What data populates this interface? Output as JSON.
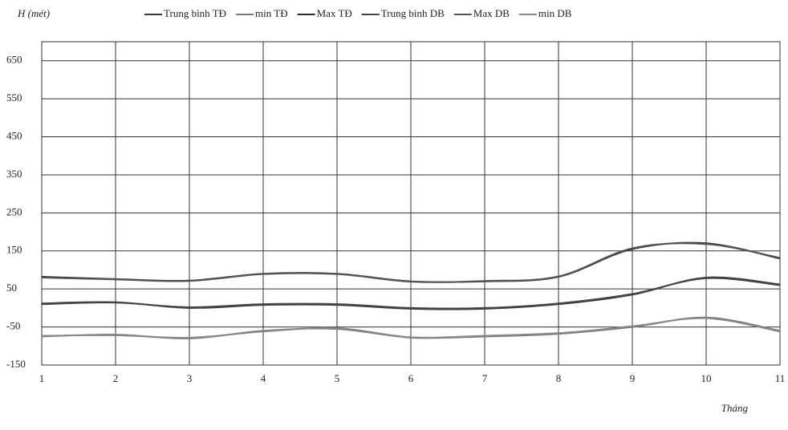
{
  "chart_data": {
    "type": "line",
    "y_label": "H (mét)",
    "x_label": "Tháng",
    "x": [
      1,
      2,
      3,
      4,
      5,
      6,
      7,
      8,
      9,
      10,
      11
    ],
    "xlim": [
      1,
      11
    ],
    "xticks": [
      1,
      2,
      3,
      4,
      5,
      6,
      7,
      8,
      9,
      10,
      11
    ],
    "ylim": [
      -150,
      700
    ],
    "yticks": [
      -150,
      -50,
      50,
      150,
      250,
      350,
      450,
      550,
      650
    ],
    "grid": true,
    "series": [
      {
        "name": "Trung bình TĐ",
        "color": "#3a3a3a",
        "values": [
          12,
          15,
          0,
          8,
          8,
          -2,
          -2,
          10,
          35,
          80,
          62
        ]
      },
      {
        "name": "min TĐ",
        "color": "#7a7a7a",
        "values": [
          -75,
          -70,
          -80,
          -60,
          -55,
          -78,
          -75,
          -68,
          -50,
          -25,
          -60
        ]
      },
      {
        "name": "Max TĐ",
        "color": "#2a2a2a",
        "values": [
          82,
          76,
          72,
          90,
          90,
          70,
          70,
          82,
          155,
          170,
          130
        ]
      },
      {
        "name": "Trung bình DB",
        "color": "#444444",
        "values": [
          10,
          14,
          2,
          10,
          10,
          0,
          0,
          12,
          37,
          78,
          60
        ]
      },
      {
        "name": "Max DB",
        "color": "#555555",
        "values": [
          80,
          75,
          71,
          89,
          89,
          69,
          71,
          83,
          157,
          168,
          132
        ]
      },
      {
        "name": "min DB",
        "color": "#888888",
        "values": [
          -73,
          -72,
          -78,
          -62,
          -53,
          -77,
          -73,
          -66,
          -48,
          -27,
          -62
        ]
      }
    ]
  }
}
